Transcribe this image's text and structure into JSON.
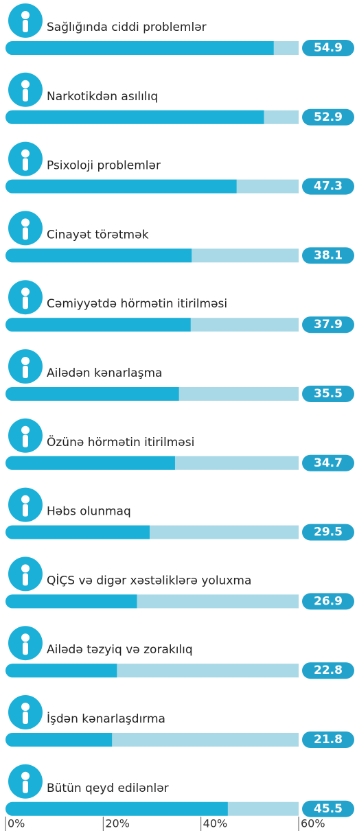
{
  "chart_data": {
    "type": "bar",
    "orientation": "horizontal",
    "categories": [
      "Sağlığında ciddi problemlər",
      "Narkotikdən asılılıq",
      "Psixoloji problemlər",
      "Cinayət törətmək",
      "Cəmiyyətdə hörmətin itirilməsi",
      "Ailədən kənarlaşma",
      "Özünə hörmətin itirilməsi",
      "Həbs olunmaq",
      "QİÇS və digər xəstəliklərə yoluxma",
      "Ailədə təzyiq və zorakılıq",
      "İşdən kənarlaşdırma",
      "Bütün qeyd edilənlər"
    ],
    "values": [
      54.9,
      52.9,
      47.3,
      38.1,
      37.9,
      35.5,
      34.7,
      29.5,
      26.9,
      22.8,
      21.8,
      45.5
    ],
    "color": "#1ab0d8",
    "track_color": "#a9d9e6",
    "label_color": "#23a3cc",
    "xlim": [
      0,
      60
    ],
    "xticks": [
      {
        "value": 0,
        "label": "0%"
      },
      {
        "value": 20,
        "label": "20%"
      },
      {
        "value": 40,
        "label": "40%"
      },
      {
        "value": 60,
        "label": "60%"
      }
    ]
  }
}
